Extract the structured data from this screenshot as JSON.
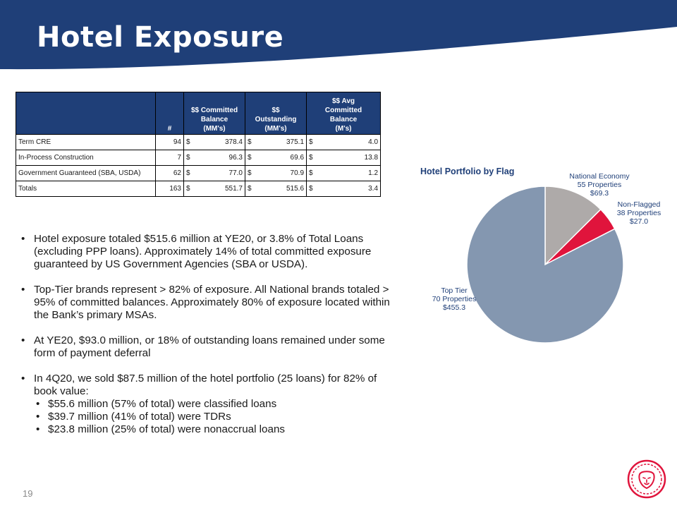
{
  "title": "Hotel Exposure",
  "table": {
    "headers": {
      "count": "#",
      "committed_l1": "$$ Committed",
      "committed_l2": "Balance",
      "committed_l3": "(MM's)",
      "outstanding_l1": "$$",
      "outstanding_l2": "Outstanding",
      "outstanding_l3": "(MM's)",
      "avg_l1": "$$ Avg",
      "avg_l2": "Committed",
      "avg_l3": "Balance",
      "avg_l4": "(M's)"
    },
    "rows": [
      {
        "label": "Term CRE",
        "count": "94",
        "committed": "378.4",
        "outstanding": "375.1",
        "avg": "4.0"
      },
      {
        "label": "In-Process Construction",
        "count": "7",
        "committed": "96.3",
        "outstanding": "69.6",
        "avg": "13.8"
      },
      {
        "label": "Government Guaranteed (SBA, USDA)",
        "count": "62",
        "committed": "77.0",
        "outstanding": "70.9",
        "avg": "1.2"
      },
      {
        "label": "Totals",
        "count": "163",
        "committed": "551.7",
        "outstanding": "515.6",
        "avg": "3.4"
      }
    ],
    "currency": "$"
  },
  "bullets": [
    "Hotel exposure totaled $515.6 million at YE20, or 3.8% of Total Loans (excluding PPP loans).  Approximately 14% of total committed exposure guaranteed by US Government Agencies (SBA or USDA).",
    "Top-Tier brands represent > 82% of exposure.  All National brands totaled > 95% of committed balances.  Approximately 80% of exposure located within the Bank’s primary MSAs.",
    "At YE20, $93.0 million, or 18% of outstanding loans remained under some form of payment deferral",
    "In  4Q20, we sold $87.5 million of the hotel portfolio (25 loans) for 82% of book value:"
  ],
  "sub_bullets": [
    "$55.6 million (57% of total) were classified loans",
    "$39.7 million (41% of total) were TDRs",
    "$23.8 million (25% of total) were nonaccrual  loans"
  ],
  "bullet_glyph": "•",
  "chart_data": {
    "type": "pie",
    "title": "Hotel Portfolio by Flag",
    "slices": [
      {
        "name": "National Economy",
        "properties": "55 Properties",
        "value_label": "$69.3",
        "value": 69.3,
        "color": "#aeaaa9"
      },
      {
        "name": "Non-Flagged",
        "properties": "38 Properties",
        "value_label": "$27.0",
        "value": 27.0,
        "color": "#e0143c"
      },
      {
        "name": "Top Tier",
        "properties": "70 Properties",
        "value_label": "$455.3",
        "value": 455.3,
        "color": "#8497b0"
      }
    ],
    "legend": "none"
  },
  "page_number": "19",
  "colors": {
    "brand_navy": "#1f3f78",
    "accent_red": "#e0143c"
  },
  "logo_icon": "lion-head-icon"
}
